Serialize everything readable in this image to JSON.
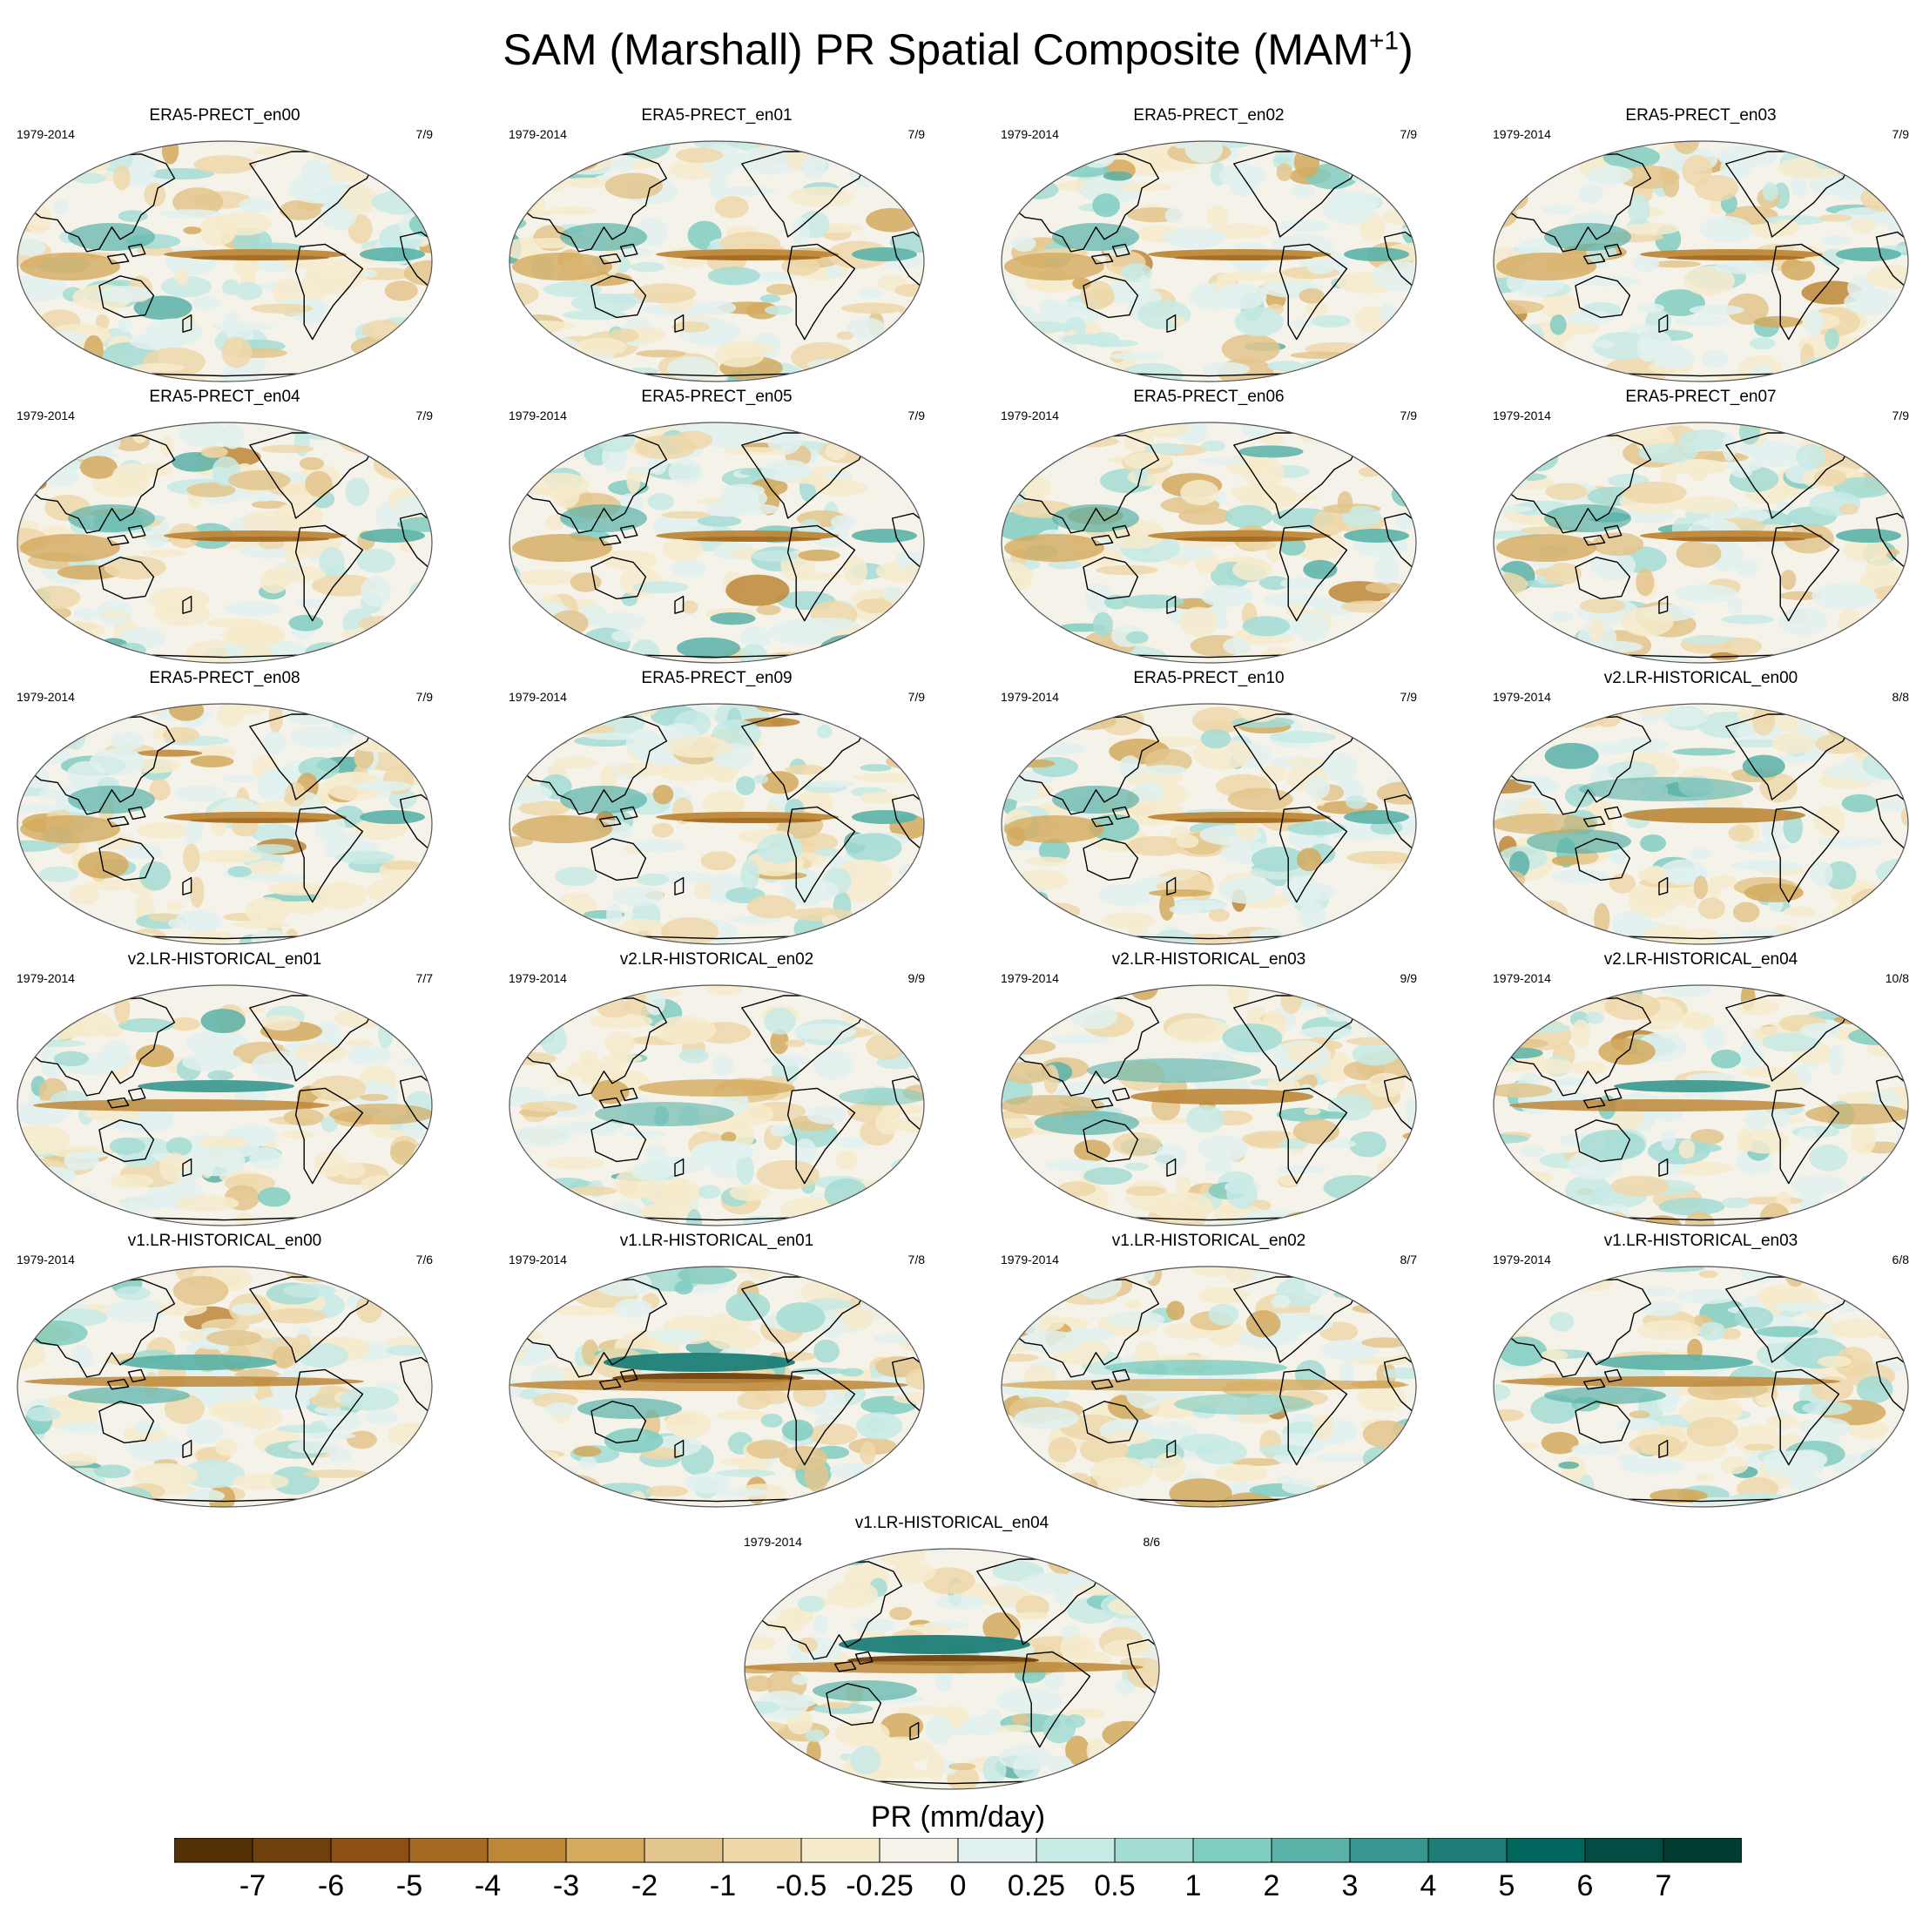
{
  "title": {
    "main": "SAM (Marshall) PR Spatial Composite (MAM",
    "sup": "+1",
    "close": ")"
  },
  "chart_data": {
    "type": "heatmap",
    "description_type": "global map panel grid (Robinson projection), precipitation composite anomalies",
    "colorbar": {
      "label": "PR (mm/day)",
      "levels": [
        "-7",
        "-6",
        "-5",
        "-4",
        "-3",
        "-2",
        "-1",
        "-0.5",
        "-0.25",
        "0",
        "0.25",
        "0.5",
        "1",
        "2",
        "3",
        "4",
        "5",
        "6",
        "7"
      ],
      "colors": [
        "#543005",
        "#6f400b",
        "#8c5112",
        "#a46a23",
        "#bd8738",
        "#d4aa5e",
        "#e3c68d",
        "#eed8aa",
        "#f6ebcd",
        "#f5f2ea",
        "#e0f1ef",
        "#c7eae5",
        "#a3dcd3",
        "#80cdc1",
        "#5ab2a8",
        "#35978f",
        "#1c7e77",
        "#01665e",
        "#024c43",
        "#003c30"
      ]
    },
    "panels": [
      {
        "title": "ERA5-PRECT_en00",
        "years": "1979-2014",
        "count": "7/9",
        "group": "era5"
      },
      {
        "title": "ERA5-PRECT_en01",
        "years": "1979-2014",
        "count": "7/9",
        "group": "era5"
      },
      {
        "title": "ERA5-PRECT_en02",
        "years": "1979-2014",
        "count": "7/9",
        "group": "era5"
      },
      {
        "title": "ERA5-PRECT_en03",
        "years": "1979-2014",
        "count": "7/9",
        "group": "era5"
      },
      {
        "title": "ERA5-PRECT_en04",
        "years": "1979-2014",
        "count": "7/9",
        "group": "era5"
      },
      {
        "title": "ERA5-PRECT_en05",
        "years": "1979-2014",
        "count": "7/9",
        "group": "era5"
      },
      {
        "title": "ERA5-PRECT_en06",
        "years": "1979-2014",
        "count": "7/9",
        "group": "era5"
      },
      {
        "title": "ERA5-PRECT_en07",
        "years": "1979-2014",
        "count": "7/9",
        "group": "era5"
      },
      {
        "title": "ERA5-PRECT_en08",
        "years": "1979-2014",
        "count": "7/9",
        "group": "era5"
      },
      {
        "title": "ERA5-PRECT_en09",
        "years": "1979-2014",
        "count": "7/9",
        "group": "era5"
      },
      {
        "title": "ERA5-PRECT_en10",
        "years": "1979-2014",
        "count": "7/9",
        "group": "era5"
      },
      {
        "title": "v2.LR-HISTORICAL_en00",
        "years": "1979-2014",
        "count": "8/8",
        "group": "v2a"
      },
      {
        "title": "v2.LR-HISTORICAL_en01",
        "years": "1979-2014",
        "count": "7/7",
        "group": "v2b"
      },
      {
        "title": "v2.LR-HISTORICAL_en02",
        "years": "1979-2014",
        "count": "9/9",
        "group": "v2c"
      },
      {
        "title": "v2.LR-HISTORICAL_en03",
        "years": "1979-2014",
        "count": "9/9",
        "group": "v2a"
      },
      {
        "title": "v2.LR-HISTORICAL_en04",
        "years": "1979-2014",
        "count": "10/8",
        "group": "v2b"
      },
      {
        "title": "v1.LR-HISTORICAL_en00",
        "years": "1979-2014",
        "count": "7/6",
        "group": "v1a"
      },
      {
        "title": "v1.LR-HISTORICAL_en01",
        "years": "1979-2014",
        "count": "7/8",
        "group": "v1b"
      },
      {
        "title": "v1.LR-HISTORICAL_en02",
        "years": "1979-2014",
        "count": "8/7",
        "group": "v1c"
      },
      {
        "title": "v1.LR-HISTORICAL_en03",
        "years": "1979-2014",
        "count": "6/8",
        "group": "v1a"
      },
      {
        "title": "v1.LR-HISTORICAL_en04",
        "years": "1979-2014",
        "count": "8/6",
        "group": "v1b"
      }
    ]
  }
}
